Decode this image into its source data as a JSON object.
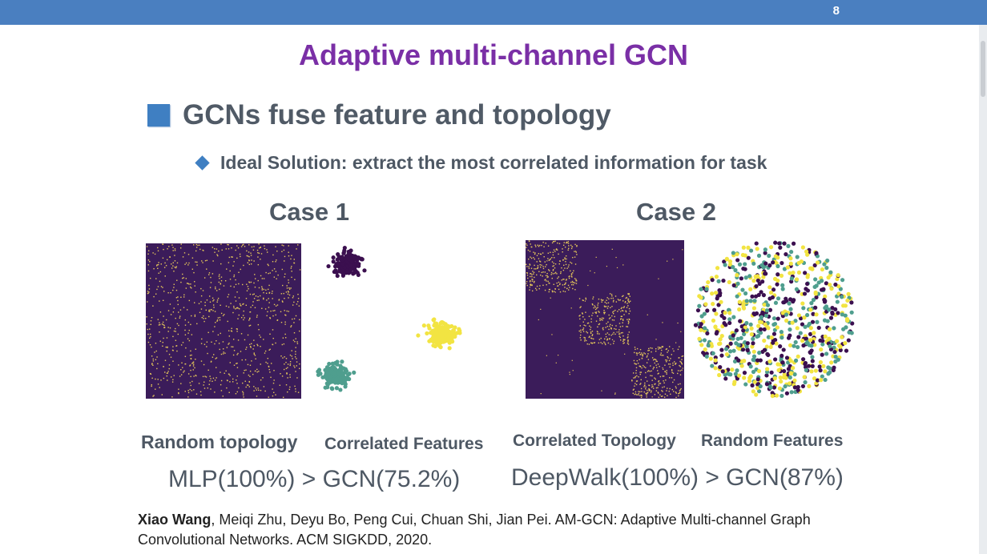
{
  "slide": {
    "page_number": "8",
    "title": "Adaptive multi-channel GCN",
    "bullet_main": "GCNs fuse feature and topology",
    "bullet_sub": "Ideal Solution: extract the most correlated information for task"
  },
  "case1": {
    "heading": "Case 1",
    "label_left": "Random topology",
    "label_right": "Correlated Features",
    "result": "MLP(100%) > GCN(75.2%)"
  },
  "case2": {
    "heading": "Case 2",
    "label_left": "Correlated Topology",
    "label_right": "Random Features",
    "result": "DeepWalk(100%) > GCN(87%)"
  },
  "citation": {
    "author_bold": "Xiao Wang",
    "rest": ", Meiqi Zhu, Deyu Bo, Peng Cui, Chuan Shi, Jian Pei. AM-GCN: Adaptive Multi-channel Graph Convolutional Networks. ACM SIGKDD, 2020."
  },
  "colors": {
    "title": "#7a2fa6",
    "accent_blue": "#3f7fc2",
    "matrix_bg": "#3b1c5a",
    "matrix_dot": "#e6c85a",
    "cluster_purple": "#3b0f4f",
    "cluster_teal": "#4f9e8e",
    "cluster_yellow": "#f2e442"
  }
}
